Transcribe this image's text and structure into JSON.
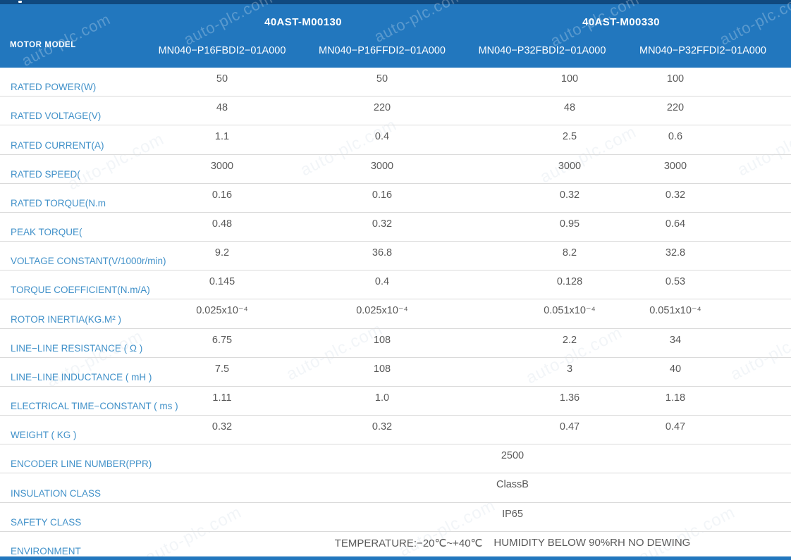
{
  "watermark": "auto-plc.com",
  "colors": {
    "header_blue": "#2277be",
    "top_strip": "#10497f",
    "label_blue": "#4191c9",
    "value_gray": "#595959",
    "divider": "#dadada"
  },
  "table": {
    "corner_label": "MOTOR MODEL",
    "groups": [
      {
        "label": "40AST-M00130"
      },
      {
        "label": "40AST-M00330"
      }
    ],
    "models": [
      "MN040−P16FBDⅠ2−01A000",
      "MN040−P16FFDⅠ2−01A000",
      "MN040−P32FBDⅠ2−01A000",
      "MN040−P32FFDⅠ2−01A000"
    ],
    "rows": [
      {
        "label": "RATED POWER(W)",
        "values": [
          "50",
          "50",
          "100",
          "100"
        ]
      },
      {
        "label": "RATED VOLTAGE(V)",
        "values": [
          "48",
          "220",
          "48",
          "220"
        ]
      },
      {
        "label": "RATED CURRENT(A)",
        "values": [
          "1.1",
          "0.4",
          "2.5",
          "0.6"
        ]
      },
      {
        "label": "RATED SPEED(",
        "values": [
          "3000",
          "3000",
          "3000",
          "3000"
        ]
      },
      {
        "label": "RATED TORQUE(N.m",
        "values": [
          "0.16",
          "0.16",
          "0.32",
          "0.32"
        ]
      },
      {
        "label": "PEAK TORQUE(",
        "values": [
          "0.48",
          "0.32",
          "0.95",
          "0.64"
        ]
      },
      {
        "label": "VOLTAGE CONSTANT(V/1000r/min)",
        "values": [
          "9.2",
          "36.8",
          "8.2",
          "32.8"
        ]
      },
      {
        "label": "TORQUE COEFFICIENT(N.m/A)",
        "values": [
          "0.145",
          "0.4",
          "0.128",
          "0.53"
        ]
      },
      {
        "label": "ROTOR INERTIA(KG.M² )",
        "values": [
          "0.025x10⁻⁴",
          "0.025x10⁻⁴",
          "0.051x10⁻⁴",
          "0.051x10⁻⁴"
        ]
      },
      {
        "label": "LINE−LINE RESISTANCE ( Ω )",
        "values": [
          "6.75",
          "108",
          "2.2",
          "34"
        ]
      },
      {
        "label": "LINE−LINE INDUCTANCE ( mH )",
        "values": [
          "7.5",
          "108",
          "3",
          "40"
        ]
      },
      {
        "label": "ELECTRICAL TIME−CONSTANT ( ms )",
        "values": [
          "1.11",
          "1.0",
          "1.36",
          "1.18"
        ]
      },
      {
        "label": "WEIGHT ( KG )",
        "values": [
          "0.32",
          "0.32",
          "0.47",
          "0.47"
        ]
      },
      {
        "label": "ENCODER LINE NUMBER(PPR)",
        "merged": "2500"
      },
      {
        "label": "INSULATION CLASS",
        "merged": "ClassB"
      },
      {
        "label": "SAFETY CLASS",
        "merged": "IP65"
      },
      {
        "label": "ENVIRONMENT",
        "merged_parts": [
          "TEMPERATURE:−20℃~+40℃",
          "HUMIDITY BELOW 90%RH NO DEWING"
        ]
      }
    ]
  }
}
